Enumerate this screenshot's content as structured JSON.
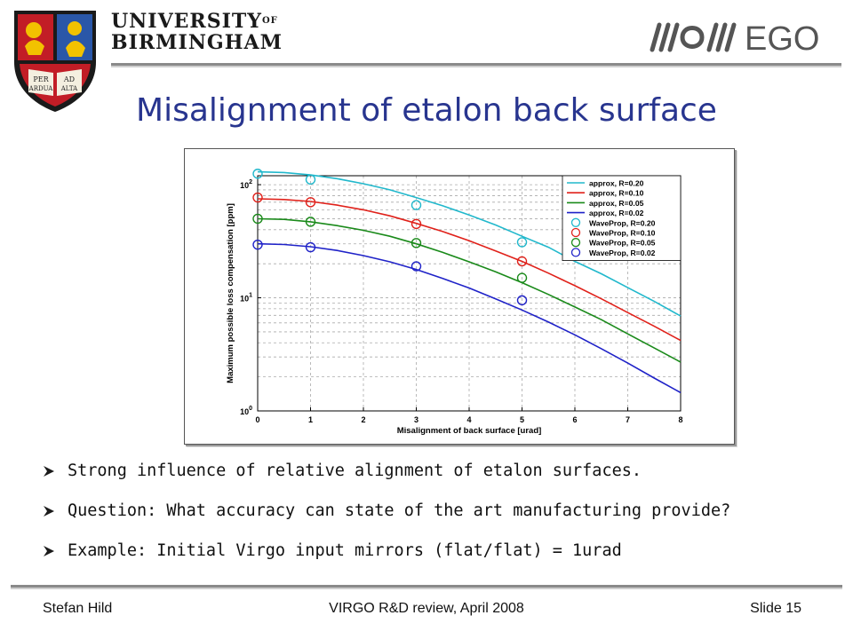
{
  "header": {
    "university_line1": "UNIVERSITY",
    "university_of": "OF",
    "university_line2": "BIRMINGHAM",
    "crest_text": [
      "PER",
      "AD",
      "ARDUA",
      "ALTA"
    ],
    "partner_logo_text": "EGO",
    "partner_logo_icon": "ego-waves-icon",
    "crest_icon": "university-crest-icon"
  },
  "slide": {
    "title": "Misalignment of etalon back surface",
    "bullets": [
      "Strong influence of relative alignment of etalon surfaces.",
      "Question: What accuracy can state of the art manufacturing provide?",
      "Example: Initial Virgo input mirrors (flat/flat) = 1urad"
    ],
    "bullet_icon": "arrow-bullet-icon"
  },
  "footer": {
    "left": "Stefan Hild",
    "center": "VIRGO R&D review, April 2008",
    "right": "Slide 15"
  },
  "colors": {
    "title": "#28358f",
    "cyan": "#21b8cc",
    "red": "#e0211a",
    "green": "#1a8a1a",
    "blue": "#1f22c8"
  },
  "chart_data": {
    "type": "line",
    "xlabel": "Misalignment of back surface [urad]",
    "ylabel": "Maximum possible loss compensation [ppm]",
    "xlim": [
      0,
      8
    ],
    "ylim": [
      1,
      120
    ],
    "yscale": "log",
    "grid": true,
    "legend_position": "top-right",
    "x_ticks": [
      "0",
      "1",
      "2",
      "3",
      "4",
      "5",
      "6",
      "7",
      "8"
    ],
    "y_ticks": [
      {
        "base": "10",
        "exp": "0",
        "value": 1
      },
      {
        "base": "10",
        "exp": "1",
        "value": 10
      },
      {
        "base": "10",
        "exp": "2",
        "value": 100
      }
    ],
    "series": [
      {
        "name": "approx, R=0.20",
        "kind": "line",
        "color": "#21b8cc",
        "x": [
          0,
          0.5,
          1,
          1.5,
          2,
          2.5,
          3,
          3.5,
          4,
          4.5,
          5,
          5.5,
          6,
          6.5,
          7,
          7.5,
          8
        ],
        "values": [
          130,
          128,
          122,
          113,
          102,
          90,
          77,
          65,
          54,
          44,
          35,
          28,
          21,
          16.3,
          12.3,
          9.3,
          6.9
        ]
      },
      {
        "name": "approx, R=0.10",
        "kind": "line",
        "color": "#e0211a",
        "x": [
          0,
          0.5,
          1,
          1.5,
          2,
          2.5,
          3,
          3.5,
          4,
          4.5,
          5,
          5.5,
          6,
          6.5,
          7,
          7.5,
          8
        ],
        "values": [
          75,
          74,
          71,
          66,
          60,
          53,
          45.5,
          38.5,
          32,
          26,
          21,
          16.5,
          12.8,
          9.8,
          7.4,
          5.6,
          4.2
        ]
      },
      {
        "name": "approx, R=0.05",
        "kind": "line",
        "color": "#1a8a1a",
        "x": [
          0,
          0.5,
          1,
          1.5,
          2,
          2.5,
          3,
          3.5,
          4,
          4.5,
          5,
          5.5,
          6,
          6.5,
          7,
          7.5,
          8
        ],
        "values": [
          50,
          49.3,
          47,
          43.5,
          39.5,
          35,
          30,
          25.2,
          20.8,
          17,
          13.6,
          10.7,
          8.3,
          6.4,
          4.8,
          3.6,
          2.7
        ]
      },
      {
        "name": "approx, R=0.02",
        "kind": "line",
        "color": "#1f22c8",
        "x": [
          0,
          0.5,
          1,
          1.5,
          2,
          2.5,
          3,
          3.5,
          4,
          4.5,
          5,
          5.5,
          6,
          6.5,
          7,
          7.5,
          8
        ],
        "values": [
          30,
          29.6,
          28.3,
          26.2,
          23.6,
          20.8,
          17.8,
          14.8,
          12.2,
          9.8,
          7.8,
          6.1,
          4.7,
          3.55,
          2.65,
          1.95,
          1.45
        ]
      },
      {
        "name": "WaveProp, R=0.20",
        "kind": "marker",
        "color": "#21b8cc",
        "x": [
          0,
          1,
          3,
          5
        ],
        "values": [
          125,
          111,
          66,
          31
        ]
      },
      {
        "name": "WaveProp, R=0.10",
        "kind": "marker",
        "color": "#e0211a",
        "x": [
          0,
          1,
          3,
          5
        ],
        "values": [
          77,
          70,
          45,
          21
        ]
      },
      {
        "name": "WaveProp, R=0.05",
        "kind": "marker",
        "color": "#1a8a1a",
        "x": [
          0,
          1,
          3,
          5
        ],
        "values": [
          50,
          47,
          30.5,
          15
        ]
      },
      {
        "name": "WaveProp, R=0.02",
        "kind": "marker",
        "color": "#1f22c8",
        "x": [
          0,
          1,
          3,
          5
        ],
        "values": [
          29.5,
          28,
          19,
          9.5
        ]
      }
    ]
  }
}
